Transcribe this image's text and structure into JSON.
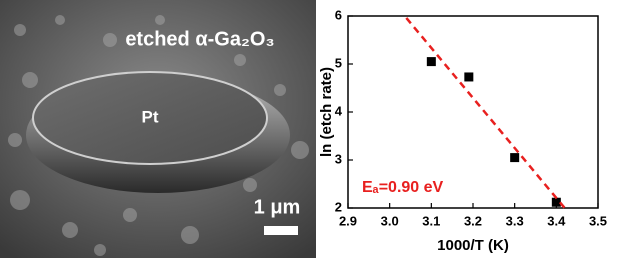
{
  "micrograph": {
    "label": "etched α-Ga₂O₃",
    "disc_label": "Pt",
    "scale_bar": "1 μm"
  },
  "chart_data": {
    "type": "scatter",
    "x_label": "1000/T (K)",
    "y_label": "ln (etch rate)",
    "annotation": "Eₐ=0.90 eV",
    "annotation_color": "#e8201f",
    "xlim": [
      2.9,
      3.5
    ],
    "xticks": [
      2.9,
      {
        "value": 3,
        "label": "3.0"
      },
      3.1,
      3.2,
      3.3,
      3.4,
      3.5
    ],
    "ylim": [
      2,
      6
    ],
    "yticks": [
      2,
      3,
      4,
      5,
      6
    ],
    "series": [
      {
        "style": "markers",
        "color": "#000000",
        "x": [
          3.1,
          3.19,
          3.3,
          3.4
        ],
        "values": [
          5.05,
          4.73,
          3.05,
          2.12
        ]
      },
      {
        "style": "dashed-line",
        "color": "#e8201f",
        "x": [
          3.04,
          3.42
        ],
        "values": [
          5.96,
          2.0
        ]
      }
    ]
  }
}
